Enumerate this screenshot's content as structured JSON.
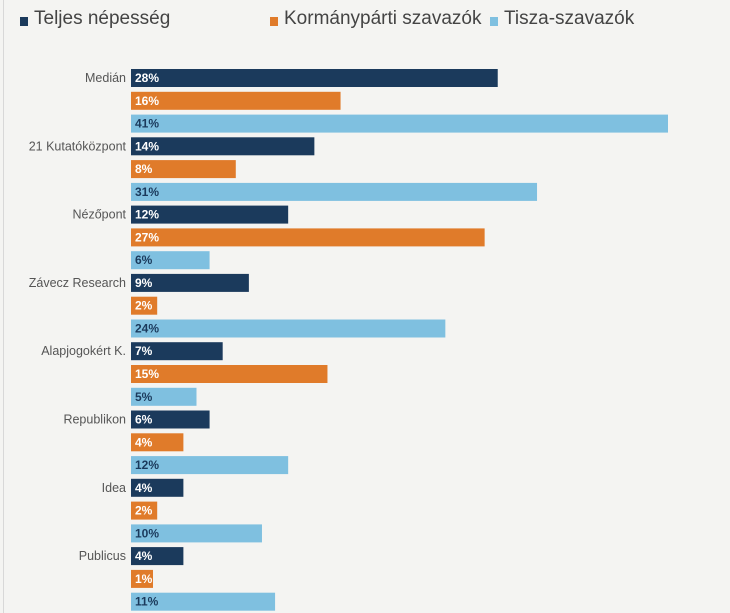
{
  "chart_data": {
    "type": "bar",
    "orientation": "horizontal",
    "categories": [
      "Medián",
      "21 Kutatóközpont",
      "Nézőpont",
      "Závecz Research",
      "Alapjogokért K.",
      "Republikon",
      "Idea",
      "Publicus"
    ],
    "series": [
      {
        "name": "Teljes népesség",
        "color": "#1b3a5c",
        "label_color": "#ffffff",
        "values": [
          28,
          14,
          12,
          9,
          7,
          6,
          4,
          4
        ]
      },
      {
        "name": "Kormánypárti szavazók",
        "color": "#e07b2a",
        "label_color": "#ffffff",
        "values": [
          16,
          8,
          27,
          2,
          15,
          4,
          2,
          1
        ]
      },
      {
        "name": "Tisza-szavazók",
        "color": "#7fc0e0",
        "label_color": "#1b3a5c",
        "values": [
          41,
          31,
          6,
          24,
          5,
          12,
          10,
          11
        ]
      }
    ],
    "value_suffix": "%",
    "xlim": [
      0,
      41
    ],
    "grid": false,
    "legend_position": "top",
    "data_labels": "inside-start"
  }
}
